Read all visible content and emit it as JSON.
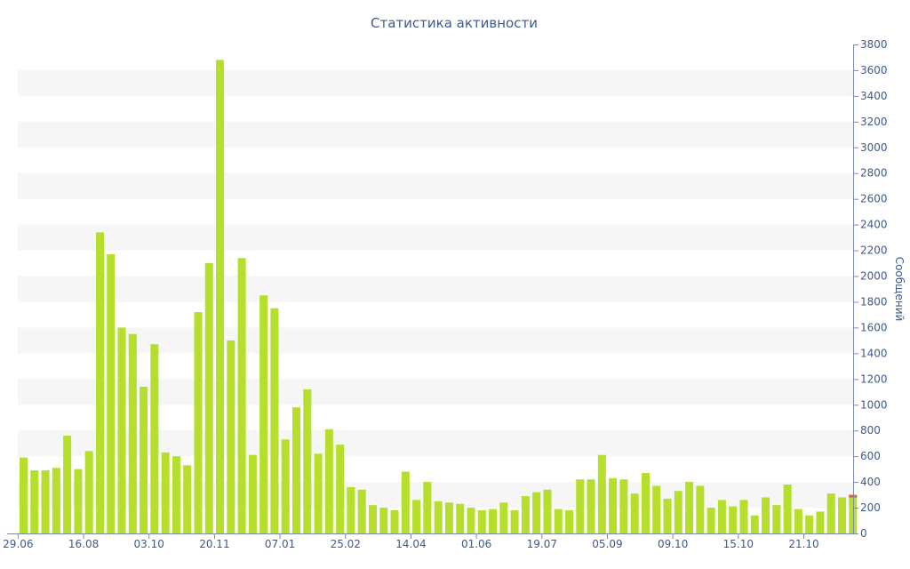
{
  "chart_data": {
    "type": "bar",
    "title": "Статистика активности",
    "ylabel": "Сообщений",
    "ylim": [
      0,
      3800
    ],
    "y_ticks": [
      0,
      200,
      400,
      600,
      800,
      1000,
      1200,
      1400,
      1600,
      1800,
      2000,
      2200,
      2400,
      2600,
      2800,
      3000,
      3200,
      3400,
      3600,
      3800
    ],
    "x_tick_labels": [
      {
        "index": 0,
        "label": "29.06"
      },
      {
        "index": 6,
        "label": "16.08"
      },
      {
        "index": 12,
        "label": "03.10"
      },
      {
        "index": 18,
        "label": "20.11"
      },
      {
        "index": 24,
        "label": "07.01"
      },
      {
        "index": 30,
        "label": "25.02"
      },
      {
        "index": 36,
        "label": "14.04"
      },
      {
        "index": 42,
        "label": "01.06"
      },
      {
        "index": 48,
        "label": "19.07"
      },
      {
        "index": 54,
        "label": "05.09"
      },
      {
        "index": 60,
        "label": "09.10"
      },
      {
        "index": 66,
        "label": "15.10"
      },
      {
        "index": 72,
        "label": "21.10"
      }
    ],
    "grid": "alternating horizontal bands",
    "y_axis_position": "right",
    "bar_color": "#b5df2c",
    "last_bar_top_color": "#d9654b",
    "band_color": "#f6f6f6",
    "text_color": "#3e5a8a",
    "values": [
      590,
      490,
      490,
      510,
      760,
      500,
      640,
      2340,
      2170,
      1600,
      1550,
      1140,
      1470,
      630,
      600,
      530,
      1720,
      2100,
      3680,
      1500,
      2140,
      610,
      1850,
      1750,
      730,
      980,
      1120,
      620,
      810,
      690,
      360,
      340,
      220,
      200,
      180,
      480,
      260,
      400,
      250,
      240,
      230,
      200,
      180,
      190,
      240,
      180,
      290,
      320,
      340,
      190,
      180,
      420,
      420,
      610,
      430,
      420,
      310,
      470,
      370,
      270,
      330,
      400,
      370,
      200,
      260,
      210,
      260,
      140,
      280,
      220,
      380,
      190,
      140,
      170,
      310,
      280,
      300
    ]
  }
}
